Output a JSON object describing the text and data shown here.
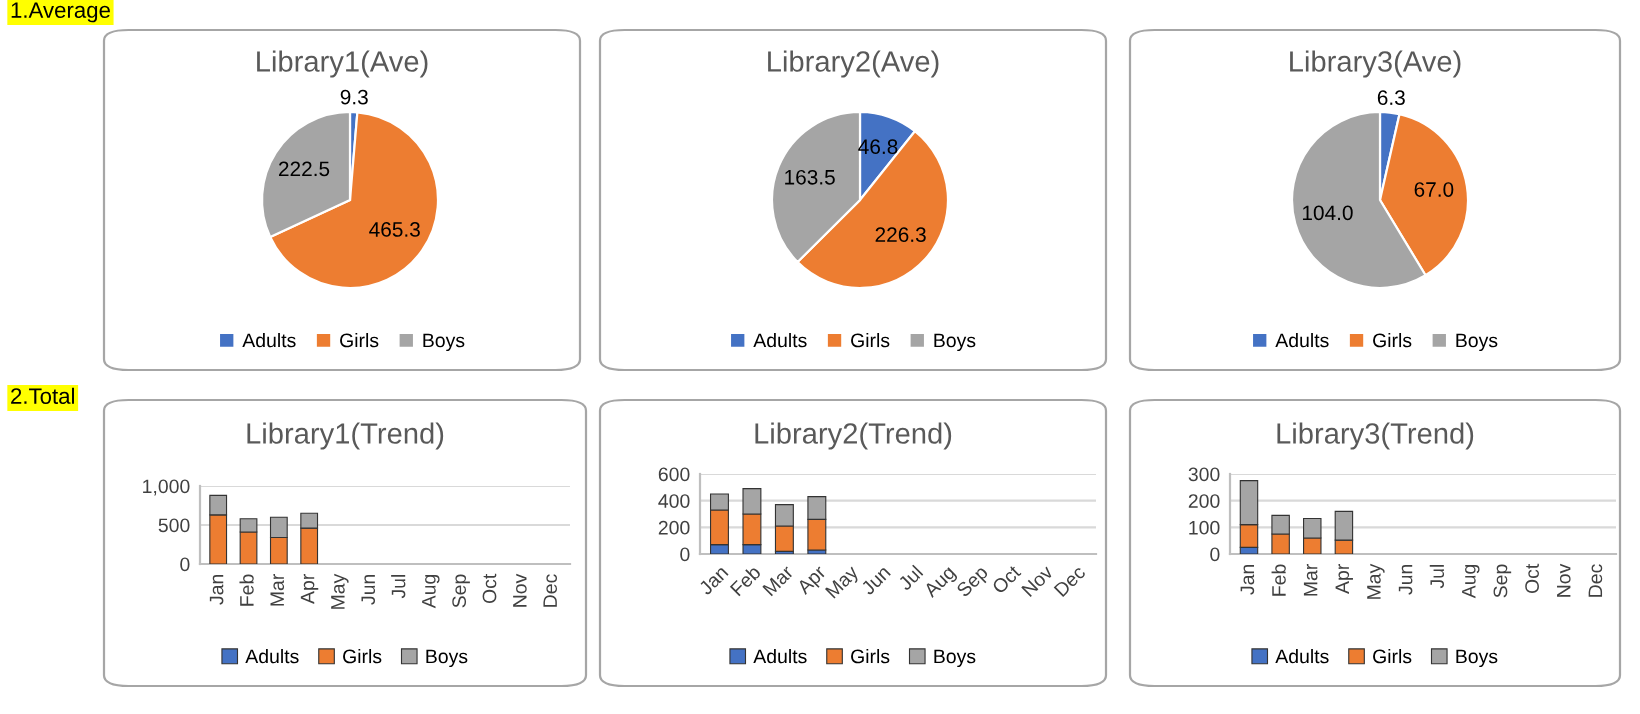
{
  "chart_data": [
    {
      "type": "pie",
      "title": "Library1(Ave)",
      "annotations": [
        "1.Average"
      ],
      "categories": [
        "Adults",
        "Girls",
        "Boys"
      ],
      "values": [
        9.3,
        465.3,
        222.5
      ],
      "value_labels": [
        "9.3",
        "465.3",
        "222.5"
      ],
      "colors": [
        "#4472c4",
        "#ed7d31",
        "#a5a5a5"
      ],
      "legend": "bottom"
    },
    {
      "type": "pie",
      "title": "Library2(Ave)",
      "categories": [
        "Adults",
        "Girls",
        "Boys"
      ],
      "values": [
        46.8,
        226.3,
        163.5
      ],
      "value_labels": [
        "46.8",
        "226.3",
        "163.5"
      ],
      "colors": [
        "#4472c4",
        "#ed7d31",
        "#a5a5a5"
      ],
      "legend": "bottom"
    },
    {
      "type": "pie",
      "title": "Library3(Ave)",
      "categories": [
        "Adults",
        "Girls",
        "Boys"
      ],
      "values": [
        6.3,
        67.0,
        104.0
      ],
      "value_labels": [
        "6.3",
        "67.0",
        "104.0"
      ],
      "colors": [
        "#4472c4",
        "#ed7d31",
        "#a5a5a5"
      ],
      "legend": "bottom"
    },
    {
      "type": "bar",
      "stacked": true,
      "title": "Library1(Trend)",
      "annotations": [
        "2.Total"
      ],
      "categories": [
        "Jan",
        "Feb",
        "Mar",
        "Apr",
        "May",
        "Jun",
        "Jul",
        "Aug",
        "Sep",
        "Oct",
        "Nov",
        "Dec"
      ],
      "series": [
        {
          "name": "Adults",
          "color": "#4472c4",
          "values": [
            null,
            null,
            null,
            null,
            null,
            null,
            null,
            null,
            null,
            null,
            null,
            null
          ]
        },
        {
          "name": "Girls",
          "color": "#ed7d31",
          "values": [
            630,
            410,
            340,
            460,
            null,
            null,
            null,
            null,
            null,
            null,
            null,
            null
          ]
        },
        {
          "name": "Boys",
          "color": "#a5a5a5",
          "values": [
            250,
            170,
            260,
            190,
            null,
            null,
            null,
            null,
            null,
            null,
            null,
            null
          ]
        }
      ],
      "ylim": [
        0,
        1000
      ],
      "yticks": [
        0,
        500,
        {
          "value": 1000,
          "label": "1,000"
        }
      ],
      "grid": "y",
      "legend": "bottom"
    },
    {
      "type": "bar",
      "stacked": true,
      "title": "Library2(Trend)",
      "categories": [
        "Jan",
        "Feb",
        "Mar",
        "Apr",
        "May",
        "Jun",
        "Jul",
        "Aug",
        "Sep",
        "Oct",
        "Nov",
        "Dec"
      ],
      "series": [
        {
          "name": "Adults",
          "color": "#4472c4",
          "values": [
            70,
            70,
            20,
            30,
            null,
            null,
            null,
            null,
            null,
            null,
            null,
            null
          ]
        },
        {
          "name": "Girls",
          "color": "#ed7d31",
          "values": [
            260,
            230,
            190,
            230,
            null,
            null,
            null,
            null,
            null,
            null,
            null,
            null
          ]
        },
        {
          "name": "Boys",
          "color": "#a5a5a5",
          "values": [
            120,
            190,
            160,
            170,
            null,
            null,
            null,
            null,
            null,
            null,
            null,
            null
          ]
        }
      ],
      "ylim": [
        0,
        600
      ],
      "yticks": [
        0,
        200,
        400,
        600
      ],
      "grid": "y",
      "legend": "bottom"
    },
    {
      "type": "bar",
      "stacked": true,
      "title": "Library3(Trend)",
      "categories": [
        "Jan",
        "Feb",
        "Mar",
        "Apr",
        "May",
        "Jun",
        "Jul",
        "Aug",
        "Sep",
        "Oct",
        "Nov",
        "Dec"
      ],
      "series": [
        {
          "name": "Adults",
          "color": "#4472c4",
          "values": [
            25,
            0,
            0,
            0,
            null,
            null,
            null,
            null,
            null,
            null,
            null,
            null
          ]
        },
        {
          "name": "Girls",
          "color": "#ed7d31",
          "values": [
            85,
            75,
            60,
            52,
            null,
            null,
            null,
            null,
            null,
            null,
            null,
            null
          ]
        },
        {
          "name": "Boys",
          "color": "#a5a5a5",
          "values": [
            165,
            70,
            73,
            108,
            null,
            null,
            null,
            null,
            null,
            null,
            null,
            null
          ]
        }
      ],
      "ylim": [
        0,
        300
      ],
      "yticks": [
        0,
        100,
        200,
        300
      ],
      "grid": "y",
      "legend": "bottom"
    }
  ]
}
